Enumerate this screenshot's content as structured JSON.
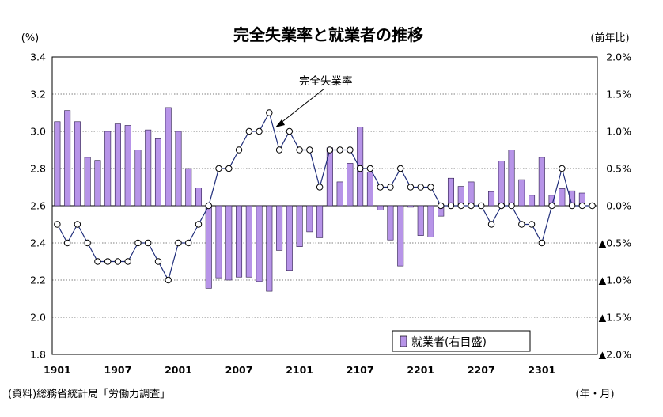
{
  "chart_data": {
    "type": "bar",
    "title": "完全失業率と就業者の推移",
    "left_unit": "(%)",
    "right_unit": "(前年比)",
    "x_unit": "(年・月)",
    "source": "(資料)総務省統計局「労働力調査」",
    "annotation": "完全失業率",
    "ylim_left": [
      1.8,
      3.4
    ],
    "ylim_right": [
      -2.0,
      2.0
    ],
    "grid": true,
    "legend_position": "bottom-right",
    "left_ticks": [
      "3.4",
      "3.2",
      "3.0",
      "2.8",
      "2.6",
      "2.4",
      "2.2",
      "2.0",
      "1.8"
    ],
    "right_ticks": [
      "2.0%",
      "1.5%",
      "1.0%",
      "0.5%",
      "0.0%",
      "▲0.5%",
      "▲1.0%",
      "▲1.5%",
      "▲2.0%"
    ],
    "x_tick_labels": [
      "1901",
      "1907",
      "2001",
      "2007",
      "2101",
      "2107",
      "2201",
      "2207",
      "2301"
    ],
    "x_tick_positions": [
      0,
      6,
      12,
      18,
      24,
      30,
      36,
      42,
      48
    ],
    "x": [
      "1901",
      "1902",
      "1903",
      "1904",
      "1905",
      "1906",
      "1907",
      "1908",
      "1909",
      "1910",
      "1911",
      "1912",
      "2001",
      "2002",
      "2003",
      "2004",
      "2005",
      "2006",
      "2007",
      "2008",
      "2009",
      "2010",
      "2011",
      "2012",
      "2101",
      "2102",
      "2103",
      "2104",
      "2105",
      "2106",
      "2107",
      "2108",
      "2109",
      "2110",
      "2111",
      "2112",
      "2201",
      "2202",
      "2203",
      "2204",
      "2205",
      "2206",
      "2207",
      "2208",
      "2209",
      "2210",
      "2211",
      "2212",
      "2301",
      "2302",
      "2303",
      "2304",
      "2305",
      "2306"
    ],
    "series": [
      {
        "name": "就業者(右目盛)",
        "axis": "right",
        "type": "bar",
        "color": "#b794e8",
        "values": [
          1.13,
          1.28,
          1.13,
          0.65,
          0.61,
          1.0,
          1.1,
          1.08,
          0.75,
          1.02,
          0.9,
          1.32,
          1.0,
          0.5,
          0.24,
          -1.11,
          -0.97,
          -1.0,
          -0.96,
          -0.96,
          -1.02,
          -1.15,
          -0.6,
          -0.87,
          -0.55,
          -0.35,
          -0.43,
          0.78,
          0.32,
          0.57,
          1.06,
          0.45,
          -0.06,
          -0.46,
          -0.81,
          -0.02,
          -0.4,
          -0.42,
          -0.14,
          0.37,
          0.26,
          0.32,
          0.0,
          0.19,
          0.6,
          0.75,
          0.35,
          0.14,
          0.65,
          0.14,
          0.23,
          0.2,
          0.17,
          0.0
        ]
      },
      {
        "name": "完全失業率",
        "axis": "left",
        "type": "line",
        "color": "#1f2d7a",
        "values": [
          2.5,
          2.4,
          2.5,
          2.4,
          2.3,
          2.3,
          2.3,
          2.3,
          2.4,
          2.4,
          2.3,
          2.2,
          2.4,
          2.4,
          2.5,
          2.6,
          2.8,
          2.8,
          2.9,
          3.0,
          3.0,
          3.1,
          2.9,
          3.0,
          2.9,
          2.9,
          2.7,
          2.9,
          2.9,
          2.9,
          2.8,
          2.8,
          2.7,
          2.7,
          2.8,
          2.7,
          2.7,
          2.7,
          2.6,
          2.6,
          2.6,
          2.6,
          2.6,
          2.5,
          2.6,
          2.6,
          2.5,
          2.5,
          2.4,
          2.6,
          2.8,
          2.6,
          2.6,
          2.6
        ]
      }
    ]
  }
}
